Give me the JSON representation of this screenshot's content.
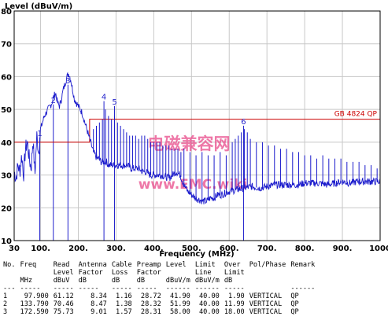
{
  "chart_data": {
    "type": "line",
    "ylabel": "Level (dBuV/m)",
    "xlabel": "Frequency (MHz)",
    "xlim": [
      30,
      1000
    ],
    "ylim": [
      10,
      80
    ],
    "x_ticks": [
      "30",
      "100.",
      "200.",
      "300.",
      "400.",
      "500.",
      "600.",
      "700.",
      "800.",
      "900.",
      "1000"
    ],
    "x_tick_values": [
      30,
      100,
      200,
      300,
      400,
      500,
      600,
      700,
      800,
      900,
      1000
    ],
    "y_ticks": [
      "10",
      "20",
      "30",
      "40",
      "50",
      "60",
      "70",
      "80"
    ],
    "grid": true,
    "limit_lines": [
      {
        "label": "GB 4824 QP",
        "color": "#cc0000",
        "points": [
          [
            30,
            40
          ],
          [
            230,
            40
          ],
          [
            230,
            47
          ],
          [
            1000,
            47
          ]
        ]
      }
    ],
    "markers": [
      {
        "label": "1",
        "freq": 97.9,
        "level": 41.9
      },
      {
        "label": "2",
        "freq": 133.79,
        "level": 51.99
      },
      {
        "label": "3",
        "freq": 172.59,
        "level": 58.0
      },
      {
        "label": "4",
        "freq": 268.0,
        "level": 53.0
      },
      {
        "label": "5",
        "freq": 296.0,
        "level": 51.5
      },
      {
        "label": "6",
        "freq": 638.0,
        "level": 45.5
      }
    ],
    "series": [
      {
        "color": "#1a1acc",
        "points": [
          [
            30,
            31
          ],
          [
            35,
            29
          ],
          [
            40,
            33
          ],
          [
            45,
            31
          ],
          [
            50,
            36
          ],
          [
            55,
            30
          ],
          [
            60,
            38
          ],
          [
            65,
            40
          ],
          [
            70,
            35
          ],
          [
            75,
            32
          ],
          [
            80,
            41
          ],
          [
            85,
            30
          ],
          [
            90,
            42
          ],
          [
            95,
            37
          ],
          [
            100,
            44
          ],
          [
            105,
            46
          ],
          [
            110,
            48
          ],
          [
            115,
            49
          ],
          [
            120,
            50
          ],
          [
            125,
            51
          ],
          [
            130,
            52
          ],
          [
            135,
            54
          ],
          [
            140,
            55
          ],
          [
            145,
            52
          ],
          [
            150,
            51
          ],
          [
            155,
            53
          ],
          [
            160,
            56
          ],
          [
            165,
            58
          ],
          [
            170,
            60
          ],
          [
            175,
            61
          ],
          [
            180,
            59
          ],
          [
            185,
            56
          ],
          [
            190,
            53
          ],
          [
            195,
            52
          ],
          [
            200,
            51
          ],
          [
            205,
            50
          ],
          [
            210,
            49
          ],
          [
            215,
            47
          ],
          [
            220,
            45
          ],
          [
            225,
            43
          ],
          [
            230,
            41
          ],
          [
            235,
            39
          ],
          [
            240,
            37
          ],
          [
            245,
            36
          ],
          [
            250,
            35
          ],
          [
            255,
            35
          ],
          [
            260,
            34
          ],
          [
            265,
            34
          ],
          [
            270,
            34
          ],
          [
            275,
            34
          ],
          [
            280,
            33
          ],
          [
            290,
            33
          ],
          [
            300,
            33
          ],
          [
            310,
            33
          ],
          [
            320,
            33
          ],
          [
            330,
            33
          ],
          [
            340,
            32
          ],
          [
            350,
            32
          ],
          [
            360,
            32
          ],
          [
            370,
            31
          ],
          [
            380,
            31
          ],
          [
            390,
            30
          ],
          [
            400,
            30
          ],
          [
            410,
            30
          ],
          [
            420,
            30
          ],
          [
            430,
            29.5
          ],
          [
            440,
            29
          ],
          [
            450,
            30
          ],
          [
            460,
            31
          ],
          [
            470,
            30
          ],
          [
            480,
            27
          ],
          [
            490,
            25
          ],
          [
            500,
            24
          ],
          [
            510,
            23
          ],
          [
            520,
            22.5
          ],
          [
            530,
            22
          ],
          [
            540,
            22
          ],
          [
            550,
            23
          ],
          [
            560,
            23
          ],
          [
            570,
            24
          ],
          [
            580,
            24
          ],
          [
            600,
            25
          ],
          [
            620,
            25.5
          ],
          [
            640,
            26
          ],
          [
            660,
            26.5
          ],
          [
            680,
            26
          ],
          [
            700,
            26.5
          ],
          [
            720,
            27
          ],
          [
            740,
            27
          ],
          [
            760,
            27
          ],
          [
            780,
            27
          ],
          [
            800,
            27.5
          ],
          [
            820,
            27.5
          ],
          [
            840,
            27.5
          ],
          [
            860,
            27
          ],
          [
            880,
            27.5
          ],
          [
            900,
            28
          ],
          [
            920,
            27.5
          ],
          [
            940,
            28
          ],
          [
            960,
            28
          ],
          [
            980,
            28
          ],
          [
            1000,
            28
          ]
        ],
        "spikes": [
          [
            240,
            44
          ],
          [
            248,
            45
          ],
          [
            256,
            46
          ],
          [
            264,
            47
          ],
          [
            272,
            50
          ],
          [
            280,
            48
          ],
          [
            288,
            47
          ],
          [
            296,
            48
          ],
          [
            304,
            46
          ],
          [
            312,
            45
          ],
          [
            320,
            44
          ],
          [
            328,
            43
          ],
          [
            336,
            42
          ],
          [
            344,
            42
          ],
          [
            352,
            42
          ],
          [
            360,
            41
          ],
          [
            368,
            42
          ],
          [
            376,
            42
          ],
          [
            384,
            41
          ],
          [
            392,
            40
          ],
          [
            400,
            40
          ],
          [
            408,
            40
          ],
          [
            416,
            40
          ],
          [
            424,
            39
          ],
          [
            432,
            39
          ],
          [
            440,
            39
          ],
          [
            448,
            38
          ],
          [
            456,
            38
          ],
          [
            464,
            38
          ],
          [
            472,
            37
          ],
          [
            480,
            38
          ],
          [
            496,
            37
          ],
          [
            512,
            36
          ],
          [
            528,
            37
          ],
          [
            544,
            36
          ],
          [
            560,
            36
          ],
          [
            576,
            37
          ],
          [
            592,
            36
          ],
          [
            608,
            40
          ],
          [
            616,
            41
          ],
          [
            624,
            42
          ],
          [
            632,
            43
          ],
          [
            640,
            44
          ],
          [
            648,
            43
          ],
          [
            656,
            41
          ],
          [
            672,
            40
          ],
          [
            688,
            40
          ],
          [
            704,
            39
          ],
          [
            720,
            39
          ],
          [
            736,
            38
          ],
          [
            752,
            38
          ],
          [
            768,
            37
          ],
          [
            784,
            37
          ],
          [
            800,
            36
          ],
          [
            816,
            36
          ],
          [
            832,
            35
          ],
          [
            848,
            36
          ],
          [
            864,
            35
          ],
          [
            880,
            35
          ],
          [
            896,
            35
          ],
          [
            912,
            34
          ],
          [
            928,
            34
          ],
          [
            944,
            34
          ],
          [
            960,
            33
          ],
          [
            976,
            33
          ],
          [
            992,
            32
          ]
        ]
      }
    ]
  },
  "watermark": {
    "line1": "电磁兼容网",
    "line2": "www.EMC.wiki"
  },
  "table": {
    "header1": [
      "No.",
      "Freq",
      "Read",
      "Antenna",
      "Cable",
      "Preamp",
      "Level",
      "Limit",
      "Over",
      "Pol/Phase",
      "Remark"
    ],
    "header2": [
      "",
      "",
      "Level",
      "Factor",
      "Loss",
      "Factor",
      "",
      "Line",
      "Limit",
      "",
      ""
    ],
    "header3": [
      "",
      "MHz",
      "dBuV",
      "dB",
      "dB",
      "dB",
      "dBuV/m",
      "dBuV/m",
      "dB",
      "",
      ""
    ],
    "separator": [
      "---",
      "-----",
      "-----",
      "-----",
      "-----",
      "-----",
      "------",
      "------",
      "-----",
      "",
      "------"
    ],
    "rows": [
      [
        "1",
        "97.900",
        "61.12",
        "8.34",
        "1.16",
        "28.72",
        "41.90",
        "40.00",
        "1.90",
        "VERTICAL",
        "QP"
      ],
      [
        "2",
        "133.790",
        "70.46",
        "8.47",
        "1.38",
        "28.32",
        "51.99",
        "40.00",
        "11.99",
        "VERTICAL",
        "QP"
      ],
      [
        "3",
        "172.590",
        "75.73",
        "9.01",
        "1.57",
        "28.31",
        "58.00",
        "40.00",
        "18.00",
        "VERTICAL",
        "QP"
      ]
    ]
  }
}
